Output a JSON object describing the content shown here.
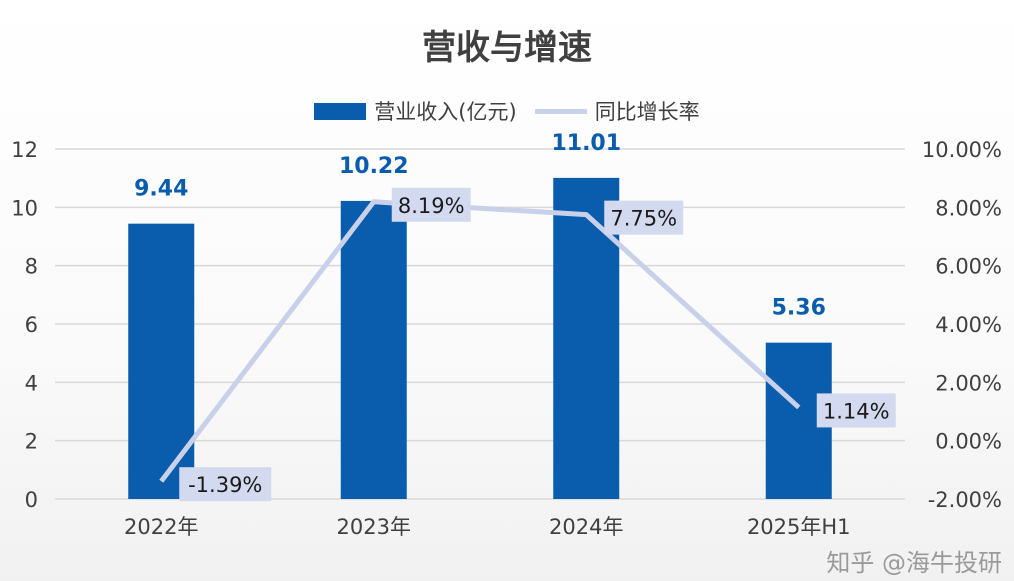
{
  "chart_data": {
    "type": "bar+line",
    "title": "营收与增速",
    "categories": [
      "2022年",
      "2023年",
      "2024年",
      "2025年H1"
    ],
    "series": [
      {
        "name": "营业收入(亿元)",
        "type": "bar",
        "axis": "left",
        "values": [
          9.44,
          10.22,
          11.01,
          5.36
        ],
        "labels": [
          "9.44",
          "10.22",
          "11.01",
          "5.36"
        ],
        "color": "#0a5cad"
      },
      {
        "name": "同比增长率",
        "type": "line",
        "axis": "right",
        "values": [
          -1.39,
          8.19,
          7.75,
          1.14
        ],
        "labels": [
          "-1.39%",
          "8.19%",
          "7.75%",
          "1.14%"
        ],
        "color": "#c9d1ea"
      }
    ],
    "left_axis": {
      "ylim": [
        0,
        12
      ],
      "ticks": [
        "0",
        "2",
        "4",
        "6",
        "8",
        "10",
        "12"
      ]
    },
    "right_axis": {
      "ylim": [
        -2,
        10
      ],
      "ticks": [
        "-2.00%",
        "0.00%",
        "2.00%",
        "4.00%",
        "6.00%",
        "8.00%",
        "10.00%"
      ]
    },
    "grid": true,
    "legend": "top"
  },
  "watermark": "知乎 @海牛投研"
}
